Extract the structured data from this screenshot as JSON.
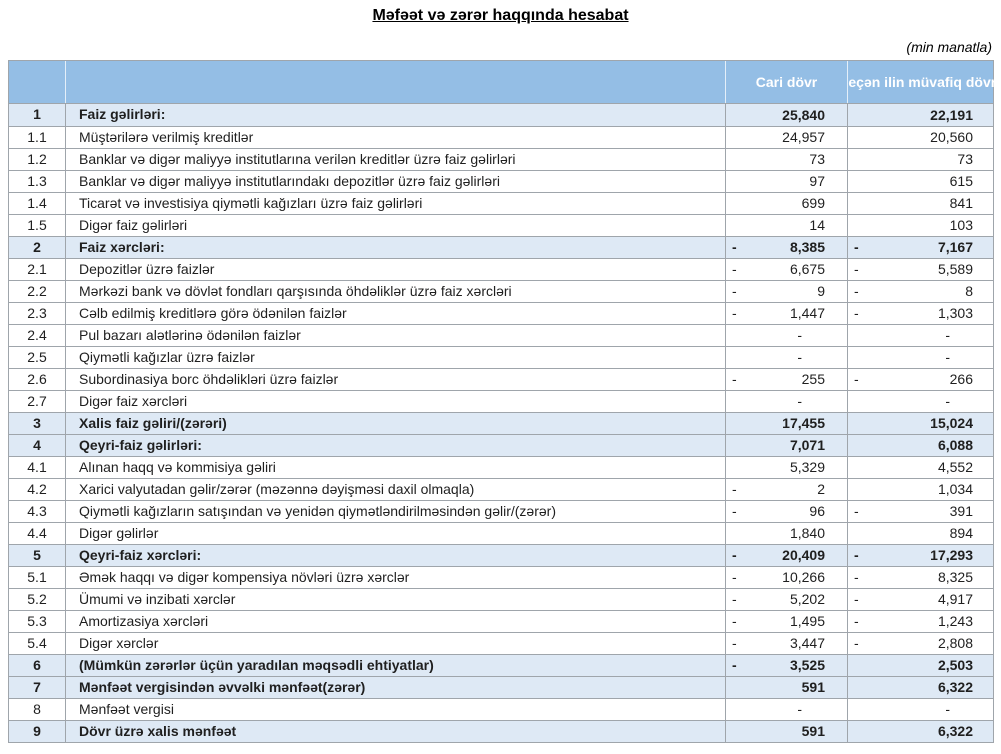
{
  "page": {
    "title": "Məfəət və zərər haqqında hesabat",
    "unit_note": "(min manatla)"
  },
  "colors": {
    "header_bg": "#94BEE5",
    "section_row_bg": "#DEE9F5",
    "border": "#9FA5AB",
    "header_text": "#FFFFFF"
  },
  "table": {
    "header": {
      "col_number": "",
      "col_label": "",
      "col_current": "Cari dövr",
      "col_previous": "Keçən ilin müvafiq dövrü"
    },
    "rows": [
      {
        "num": "1",
        "label": "Faiz gəlirləri:",
        "section": true,
        "cur": {
          "sign": "",
          "val": "25,840"
        },
        "prev": {
          "sign": "",
          "val": "22,191"
        }
      },
      {
        "num": "1.1",
        "label": "Müştərilərə verilmiş kreditlər",
        "section": false,
        "cur": {
          "sign": "",
          "val": "24,957"
        },
        "prev": {
          "sign": "",
          "val": "20,560"
        }
      },
      {
        "num": "1.2",
        "label": "Banklar və digər maliyyə institutlarına verilən kreditlər üzrə faiz gəlirləri",
        "section": false,
        "cur": {
          "sign": "",
          "val": "73"
        },
        "prev": {
          "sign": "",
          "val": "73"
        }
      },
      {
        "num": "1.3",
        "label": "Banklar və digər maliyyə institutlarındakı depozitlər üzrə faiz gəlirləri",
        "section": false,
        "cur": {
          "sign": "",
          "val": "97"
        },
        "prev": {
          "sign": "",
          "val": "615"
        }
      },
      {
        "num": "1.4",
        "label": "Ticarət və investisiya qiymətli kağızları üzrə faiz gəlirləri",
        "section": false,
        "cur": {
          "sign": "",
          "val": "699"
        },
        "prev": {
          "sign": "",
          "val": "841"
        }
      },
      {
        "num": "1.5",
        "label": "Digər faiz gəlirləri",
        "section": false,
        "cur": {
          "sign": "",
          "val": "14"
        },
        "prev": {
          "sign": "",
          "val": "103"
        }
      },
      {
        "num": "2",
        "label": "Faiz xərcləri:",
        "section": true,
        "cur": {
          "sign": "-",
          "val": "8,385"
        },
        "prev": {
          "sign": "-",
          "val": "7,167"
        }
      },
      {
        "num": "2.1",
        "label": "Depozitlər üzrə faizlər",
        "section": false,
        "cur": {
          "sign": "-",
          "val": "6,675"
        },
        "prev": {
          "sign": "-",
          "val": "5,589"
        }
      },
      {
        "num": "2.2",
        "label": "Mərkəzi bank və dövlət fondları qarşısında öhdəliklər üzrə faiz xərcləri",
        "section": false,
        "cur": {
          "sign": "-",
          "val": "9"
        },
        "prev": {
          "sign": "-",
          "val": "8"
        }
      },
      {
        "num": "2.3",
        "label": "Cəlb edilmiş kreditlərə görə ödənilən faizlər",
        "section": false,
        "cur": {
          "sign": "-",
          "val": "1,447"
        },
        "prev": {
          "sign": "-",
          "val": "1,303"
        }
      },
      {
        "num": "2.4",
        "label": "Pul bazarı alətlərinə ödənilən faizlər",
        "section": false,
        "cur": {
          "sign": "",
          "val": "-"
        },
        "prev": {
          "sign": "",
          "val": "-"
        }
      },
      {
        "num": "2.5",
        "label": "Qiymətli kağızlar üzrə faizlər",
        "section": false,
        "cur": {
          "sign": "",
          "val": "-"
        },
        "prev": {
          "sign": "",
          "val": "-"
        }
      },
      {
        "num": "2.6",
        "label": "Subordinasiya borc öhdəlikləri üzrə faizlər",
        "section": false,
        "cur": {
          "sign": "-",
          "val": "255"
        },
        "prev": {
          "sign": "-",
          "val": "266"
        }
      },
      {
        "num": "2.7",
        "label": "Digər faiz xərcləri",
        "section": false,
        "cur": {
          "sign": "",
          "val": "-"
        },
        "prev": {
          "sign": "",
          "val": "-"
        }
      },
      {
        "num": "3",
        "label": "Xalis faiz gəliri/(zərəri)",
        "section": true,
        "cur": {
          "sign": "",
          "val": "17,455"
        },
        "prev": {
          "sign": "",
          "val": "15,024"
        }
      },
      {
        "num": "4",
        "label": "Qeyri-faiz gəlirləri:",
        "section": true,
        "cur": {
          "sign": "",
          "val": "7,071"
        },
        "prev": {
          "sign": "",
          "val": "6,088"
        }
      },
      {
        "num": "4.1",
        "label": "Alınan haqq və kommisiya gəliri",
        "section": false,
        "cur": {
          "sign": "",
          "val": "5,329"
        },
        "prev": {
          "sign": "",
          "val": "4,552"
        }
      },
      {
        "num": "4.2",
        "label": "Xarici valyutadan gəlir/zərər (məzənnə dəyişməsi daxil olmaqla)",
        "section": false,
        "cur": {
          "sign": "-",
          "val": "2"
        },
        "prev": {
          "sign": "",
          "val": "1,034"
        }
      },
      {
        "num": "4.3",
        "label": "Qiymətli kağızların satışından və yenidən qiymətləndirilməsindən gəlir/(zərər)",
        "section": false,
        "cur": {
          "sign": "-",
          "val": "96"
        },
        "prev": {
          "sign": "-",
          "val": "391"
        }
      },
      {
        "num": "4.4",
        "label": "Digər gəlirlər",
        "section": false,
        "cur": {
          "sign": "",
          "val": "1,840"
        },
        "prev": {
          "sign": "",
          "val": "894"
        }
      },
      {
        "num": "5",
        "label": "Qeyri-faiz xərcləri:",
        "section": true,
        "cur": {
          "sign": "-",
          "val": "20,409"
        },
        "prev": {
          "sign": "-",
          "val": "17,293"
        }
      },
      {
        "num": "5.1",
        "label": "Əmək haqqı və digər kompensiya növləri üzrə xərclər",
        "section": false,
        "cur": {
          "sign": "-",
          "val": "10,266"
        },
        "prev": {
          "sign": "-",
          "val": "8,325"
        }
      },
      {
        "num": "5.2",
        "label": "Ümumi və inzibati xərclər",
        "section": false,
        "cur": {
          "sign": "-",
          "val": "5,202"
        },
        "prev": {
          "sign": "-",
          "val": "4,917"
        }
      },
      {
        "num": "5.3",
        "label": "Amortizasiya xərcləri",
        "section": false,
        "cur": {
          "sign": "-",
          "val": "1,495"
        },
        "prev": {
          "sign": "-",
          "val": "1,243"
        }
      },
      {
        "num": "5.4",
        "label": "Digər xərclər",
        "section": false,
        "cur": {
          "sign": "-",
          "val": "3,447"
        },
        "prev": {
          "sign": "-",
          "val": "2,808"
        }
      },
      {
        "num": "6",
        "label": "(Mümkün zərərlər üçün yaradılan məqsədli ehtiyatlar)",
        "section": true,
        "cur": {
          "sign": "-",
          "val": "3,525"
        },
        "prev": {
          "sign": "",
          "val": "2,503"
        }
      },
      {
        "num": "7",
        "label": "Mənfəət vergisindən əvvəlki mənfəət(zərər)",
        "section": true,
        "cur": {
          "sign": "",
          "val": "591"
        },
        "prev": {
          "sign": "",
          "val": "6,322"
        }
      },
      {
        "num": "8",
        "label": "Mənfəət vergisi",
        "section": false,
        "cur": {
          "sign": "",
          "val": "-"
        },
        "prev": {
          "sign": "",
          "val": "-"
        }
      },
      {
        "num": "9",
        "label": "Dövr üzrə xalis mənfəət",
        "section": true,
        "cur": {
          "sign": "",
          "val": "591"
        },
        "prev": {
          "sign": "",
          "val": "6,322"
        }
      }
    ]
  }
}
